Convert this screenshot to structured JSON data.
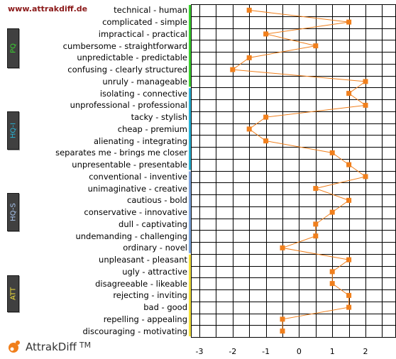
{
  "site_url": "www.attrakdiff.de",
  "logo": {
    "name": "AttrakDiff",
    "tm": "TM",
    "color": "#f07f1c"
  },
  "groups": [
    {
      "label": "PQ",
      "color": "#3ad12f",
      "text_color": "#3ad12f",
      "start": 0,
      "end": 6
    },
    {
      "label": "HQ-I",
      "color": "#27b3d6",
      "text_color": "#27b3d6",
      "start": 7,
      "end": 13
    },
    {
      "label": "HQ-S",
      "color": "#7fa8e0",
      "text_color": "#a8c4ee",
      "start": 14,
      "end": 20
    },
    {
      "label": "ATT",
      "color": "#f5e23a",
      "text_color": "#f5e23a",
      "start": 21,
      "end": 27
    }
  ],
  "chart_data": {
    "type": "line",
    "orientation": "horizontal",
    "xlim": [
      -3,
      3
    ],
    "x_ticks": [
      "-3",
      "-2",
      "-1",
      "0",
      "1",
      "2"
    ],
    "grid": true,
    "marker": "square",
    "line_color": "#f07f1c",
    "items": [
      {
        "label": "technical - human",
        "value": -1.5
      },
      {
        "label": "complicated - simple",
        "value": 1.5
      },
      {
        "label": "impractical - practical",
        "value": -1.0
      },
      {
        "label": "cumbersome - straightforward",
        "value": 0.5
      },
      {
        "label": "unpredictable - predictable",
        "value": -1.5
      },
      {
        "label": "confusing - clearly structured",
        "value": -2.0
      },
      {
        "label": "unruly - manageable",
        "value": 2.0
      },
      {
        "label": "isolating - connective",
        "value": 1.5
      },
      {
        "label": "unprofessional - professional",
        "value": 2.0
      },
      {
        "label": "tacky - stylish",
        "value": -1.0
      },
      {
        "label": "cheap - premium",
        "value": -1.5
      },
      {
        "label": "alienating - integrating",
        "value": -1.0
      },
      {
        "label": "separates me - brings me closer",
        "value": 1.0
      },
      {
        "label": "unpresentable - presentable",
        "value": 1.5
      },
      {
        "label": "conventional - inventive",
        "value": 2.0
      },
      {
        "label": "unimaginative - creative",
        "value": 0.5
      },
      {
        "label": "cautious - bold",
        "value": 1.5
      },
      {
        "label": "conservative - innovative",
        "value": 1.0
      },
      {
        "label": "dull - captivating",
        "value": 0.5
      },
      {
        "label": "undemanding - challenging",
        "value": 0.5
      },
      {
        "label": "ordinary - novel",
        "value": -0.5
      },
      {
        "label": "unpleasant - pleasant",
        "value": 1.5
      },
      {
        "label": "ugly - attractive",
        "value": 1.0
      },
      {
        "label": "disagreeable - likeable",
        "value": 1.0
      },
      {
        "label": "rejecting - inviting",
        "value": 1.5
      },
      {
        "label": "bad - good",
        "value": 1.5
      },
      {
        "label": "repelling - appealing",
        "value": -0.5
      },
      {
        "label": "discouraging - motivating",
        "value": -0.5
      }
    ]
  }
}
